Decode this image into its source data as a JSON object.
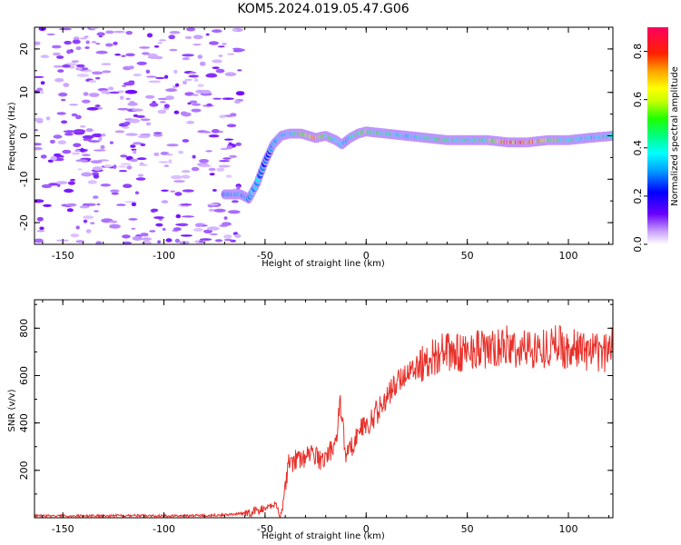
{
  "title": "KOM5.2024.019.05.47.G06",
  "chart_data": [
    {
      "type": "heatmap",
      "xlabel": "Height of straight line (km)",
      "ylabel": "Frequency (Hz)",
      "xlim": [
        -164,
        122
      ],
      "ylim": [
        -25,
        25
      ],
      "xticks": [
        -150,
        -100,
        -50,
        0,
        50,
        100
      ],
      "yticks": [
        -20,
        -10,
        0,
        10,
        20
      ],
      "colorbar": {
        "label": "Normalized spectral amplitude",
        "range": [
          0,
          0.9
        ],
        "ticks": [
          "0.0",
          "0.2",
          "0.4",
          "0.6",
          "0.8"
        ],
        "colormap": "gist_rainbow_r"
      },
      "signal_trace": {
        "x": [
          -70,
          -62,
          -58,
          -54,
          -50,
          -46,
          -42,
          -38,
          -32,
          -25,
          -20,
          -15,
          -12,
          -8,
          -4,
          0,
          10,
          20,
          30,
          40,
          50,
          60,
          70,
          80,
          90,
          100,
          110,
          122
        ],
        "frequency": [
          -13.5,
          -13.5,
          -14.5,
          -11,
          -6,
          -2,
          0,
          0.5,
          0.5,
          -0.5,
          0,
          -1,
          -2,
          -0.5,
          0.5,
          1,
          0.5,
          0,
          -0.5,
          -1,
          -1,
          -1,
          -1.5,
          -1.5,
          -1,
          -1,
          -0.5,
          0
        ],
        "amplitude": [
          0.3,
          0.35,
          0.38,
          0.35,
          0.3,
          0.3,
          0.35,
          0.4,
          0.55,
          0.7,
          0.55,
          0.45,
          0.35,
          0.4,
          0.5,
          0.55,
          0.45,
          0.4,
          0.45,
          0.5,
          0.45,
          0.5,
          0.8,
          0.85,
          0.6,
          0.45,
          0.4,
          0.4
        ]
      },
      "noise_region": "x < -62 km, low-amplitude (~0.05-0.15) speckle across all frequencies"
    },
    {
      "type": "line",
      "xlabel": "Height of straight line (km)",
      "ylabel": "SNR (v/v)",
      "xlim": [
        -164,
        122
      ],
      "ylim": [
        0,
        920
      ],
      "xticks": [
        -150,
        -100,
        -50,
        0,
        50,
        100
      ],
      "yticks": [
        200,
        400,
        600,
        800
      ],
      "color": "#e8302a",
      "series": [
        {
          "x": [
            -164,
            -140,
            -120,
            -100,
            -80,
            -70,
            -60,
            -55,
            -50,
            -45,
            -42,
            -40,
            -38,
            -36,
            -34,
            -32,
            -30,
            -26,
            -22,
            -18,
            -15,
            -13,
            -10,
            -6,
            -2,
            0,
            4,
            8,
            12,
            16,
            20,
            25,
            30,
            35,
            40,
            45,
            50,
            55,
            60,
            65,
            70,
            75,
            80,
            85,
            90,
            95,
            100,
            105,
            110,
            115,
            120,
            122
          ],
          "values": [
            8,
            8,
            10,
            8,
            10,
            12,
            18,
            28,
            38,
            60,
            5,
            140,
            250,
            230,
            260,
            240,
            260,
            270,
            240,
            280,
            310,
            500,
            260,
            320,
            390,
            380,
            430,
            480,
            530,
            580,
            610,
            640,
            660,
            690,
            700,
            690,
            700,
            720,
            700,
            710,
            730,
            700,
            720,
            710,
            720,
            740,
            700,
            720,
            700,
            690,
            700,
            760
          ]
        }
      ]
    }
  ]
}
